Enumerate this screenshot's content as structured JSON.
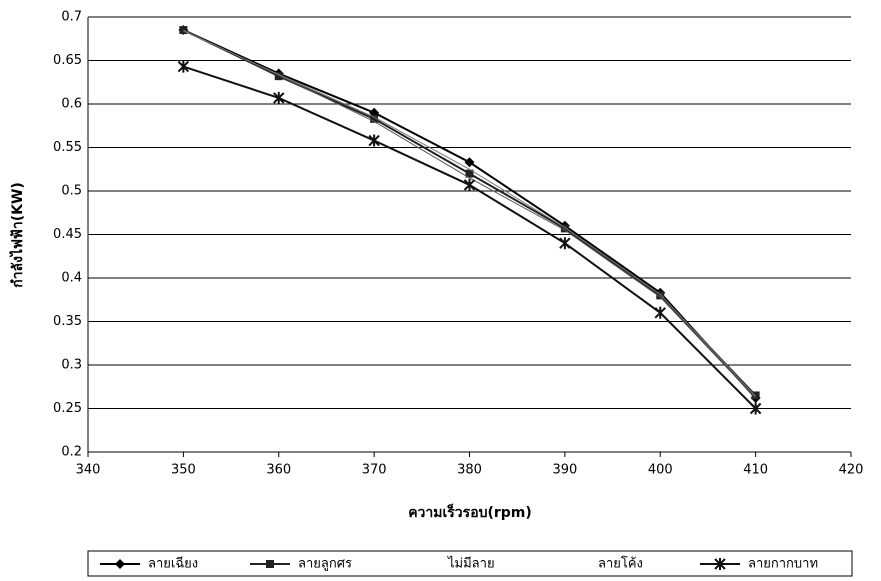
{
  "chart_data": {
    "type": "line",
    "x_label": "ความเร็วรอบ(rpm)",
    "y_label": "กำลังไฟฟ้า(KW)",
    "x": [
      350,
      360,
      370,
      380,
      390,
      400,
      410
    ],
    "series": [
      {
        "name": "ลายเฉียง",
        "color": "#000000",
        "marker": "diamond",
        "values": [
          0.685,
          0.635,
          0.59,
          0.533,
          0.46,
          0.383,
          0.262
        ]
      },
      {
        "name": "ลายลูกศร",
        "color": "#222222",
        "marker": "square",
        "values": [
          0.685,
          0.632,
          0.583,
          0.52,
          0.457,
          0.38,
          0.265
        ]
      },
      {
        "name": "ไม่มีลาย",
        "color": "#555555",
        "marker": "none",
        "values": [
          0.685,
          0.633,
          0.58,
          0.515,
          0.455,
          0.378,
          0.262
        ]
      },
      {
        "name": "ลายโค้ง",
        "color": "#777777",
        "marker": "none",
        "values": [
          0.684,
          0.634,
          0.585,
          0.525,
          0.458,
          0.381,
          0.264
        ]
      },
      {
        "name": "ลายกากบาท",
        "color": "#111111",
        "marker": "x",
        "values": [
          0.643,
          0.607,
          0.558,
          0.507,
          0.44,
          0.36,
          0.25
        ]
      }
    ],
    "xlim": [
      340,
      420
    ],
    "xticks": [
      340,
      350,
      360,
      370,
      380,
      390,
      400,
      410,
      420
    ],
    "ylim": [
      0.2,
      0.7
    ],
    "yticks": [
      0.2,
      0.25,
      0.3,
      0.35,
      0.4,
      0.45,
      0.5,
      0.55,
      0.6,
      0.65,
      0.7
    ],
    "grid": true,
    "legend": "bottom"
  }
}
